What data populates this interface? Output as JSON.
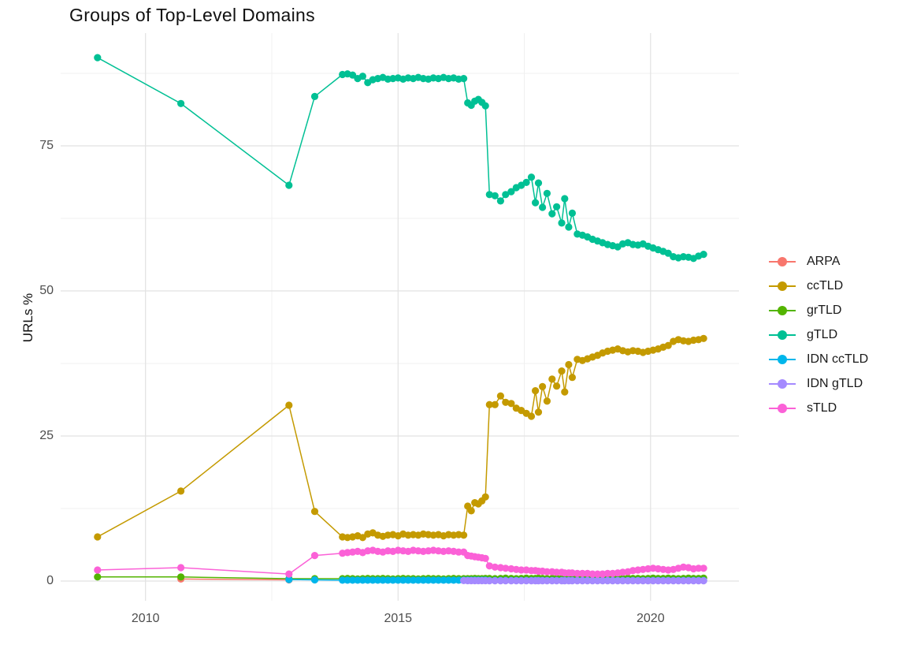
{
  "title": "Groups of Top-Level Domains",
  "y_axis": {
    "label": "URLs %",
    "ticks": [
      {
        "label": "0",
        "value": 0
      },
      {
        "label": "25",
        "value": 25
      },
      {
        "label": "50",
        "value": 50
      },
      {
        "label": "75",
        "value": 75
      }
    ]
  },
  "x_axis": {
    "ticks": [
      {
        "label": "2010",
        "value": 2010
      },
      {
        "label": "2015",
        "value": 2015
      },
      {
        "label": "2020",
        "value": 2020
      }
    ]
  },
  "colors": {
    "background": "#ffffff",
    "grid_major": "#e2e2e2",
    "grid_minor": "#f0f0f0",
    "tick_text": "#4d4d4d",
    "title_text": "#111111"
  },
  "chart_data": {
    "type": "line",
    "title": "Groups of Top-Level Domains",
    "xlabel": "",
    "ylabel": "URLs %",
    "legend_position": "right",
    "x_domain": [
      2008.32,
      2021.75
    ],
    "y_domain": [
      -3.4,
      94.43
    ],
    "grid": {
      "x_major": [
        2010,
        2015,
        2020
      ],
      "x_minor": [
        2012.5,
        2017.5
      ],
      "y_major": [
        0,
        25,
        50,
        75
      ],
      "y_minor": [
        12.5,
        37.5,
        62.5,
        87.5
      ]
    },
    "x": [
      2009.05,
      2010.7,
      2012.84,
      2013.35,
      2013.9,
      2014.0,
      2014.1,
      2014.2,
      2014.3,
      2014.4,
      2014.5,
      2014.6,
      2014.7,
      2014.8,
      2014.9,
      2015.0,
      2015.1,
      2015.2,
      2015.3,
      2015.4,
      2015.5,
      2015.6,
      2015.7,
      2015.8,
      2015.9,
      2016.0,
      2016.1,
      2016.2,
      2016.3,
      2016.38,
      2016.45,
      2016.52,
      2016.59,
      2016.66,
      2016.73,
      2016.81,
      2016.92,
      2017.03,
      2017.13,
      2017.24,
      2017.34,
      2017.44,
      2017.54,
      2017.64,
      2017.72,
      2017.78,
      2017.86,
      2017.95,
      2018.05,
      2018.14,
      2018.24,
      2018.3,
      2018.38,
      2018.45,
      2018.55,
      2018.65,
      2018.75,
      2018.85,
      2018.95,
      2019.05,
      2019.15,
      2019.25,
      2019.35,
      2019.45,
      2019.55,
      2019.65,
      2019.75,
      2019.85,
      2019.95,
      2020.05,
      2020.15,
      2020.25,
      2020.35,
      2020.45,
      2020.55,
      2020.65,
      2020.75,
      2020.85,
      2020.95,
      2021.05
    ],
    "series": [
      {
        "name": "ARPA",
        "color": "#F8766D",
        "values": [
          null,
          0.35,
          0.2,
          null,
          null,
          null,
          null,
          null,
          null,
          null,
          null,
          null,
          null,
          null,
          null,
          null,
          null,
          null,
          null,
          null,
          null,
          null,
          null,
          null,
          null,
          null,
          null,
          null,
          null,
          null,
          null,
          null,
          null,
          null,
          null,
          null,
          null,
          null,
          null,
          null,
          null,
          null,
          null,
          null,
          null,
          null,
          null,
          null,
          null,
          null,
          null,
          null,
          null,
          null,
          null,
          null,
          null,
          null,
          null,
          null,
          null,
          null,
          null,
          null,
          null,
          null,
          null,
          null,
          null,
          null,
          null,
          null,
          null,
          null,
          null,
          null,
          null,
          null,
          null,
          null
        ]
      },
      {
        "name": "ccTLD",
        "color": "#C49A00",
        "values": [
          7.6,
          15.5,
          30.3,
          12.0,
          7.6,
          7.5,
          7.6,
          7.8,
          7.5,
          8.1,
          8.3,
          7.9,
          7.7,
          7.9,
          8.0,
          7.8,
          8.1,
          7.9,
          8.0,
          7.9,
          8.1,
          8.0,
          7.9,
          8.0,
          7.8,
          8.0,
          7.9,
          8.0,
          7.9,
          12.9,
          12.1,
          13.5,
          13.3,
          13.8,
          14.5,
          30.4,
          30.4,
          31.9,
          30.8,
          30.6,
          29.8,
          29.4,
          28.9,
          28.4,
          32.8,
          29.1,
          33.5,
          31.0,
          34.8,
          33.6,
          36.2,
          32.6,
          37.3,
          35.1,
          38.2,
          38.0,
          38.3,
          38.6,
          38.9,
          39.3,
          39.6,
          39.8,
          40.0,
          39.7,
          39.5,
          39.7,
          39.6,
          39.4,
          39.6,
          39.8,
          40.0,
          40.3,
          40.6,
          41.3,
          41.6,
          41.4,
          41.3,
          41.5,
          41.6,
          41.8
        ]
      },
      {
        "name": "grTLD",
        "color": "#53B400",
        "values": [
          0.7,
          0.7,
          0.4,
          0.4,
          0.4,
          0.45,
          0.4,
          0.35,
          0.4,
          0.45,
          0.4,
          0.4,
          0.45,
          0.4,
          0.35,
          0.4,
          0.45,
          0.4,
          0.4,
          0.35,
          0.4,
          0.45,
          0.4,
          0.4,
          0.35,
          0.4,
          0.45,
          0.4,
          0.4,
          0.4,
          0.4,
          0.45,
          0.4,
          0.4,
          0.45,
          0.45,
          0.4,
          0.45,
          0.5,
          0.45,
          0.4,
          0.45,
          0.5,
          0.45,
          0.45,
          0.5,
          0.45,
          0.4,
          0.45,
          0.5,
          0.45,
          0.45,
          0.4,
          0.45,
          0.5,
          0.45,
          0.45,
          0.5,
          0.45,
          0.4,
          0.45,
          0.5,
          0.45,
          0.45,
          0.5,
          0.45,
          0.45,
          0.4,
          0.45,
          0.5,
          0.45,
          0.45,
          0.5,
          0.45,
          0.4,
          0.45,
          0.5,
          0.45,
          0.45,
          0.5
        ]
      },
      {
        "name": "gTLD",
        "color": "#00C094",
        "values": [
          90.2,
          82.3,
          68.2,
          83.5,
          87.3,
          87.4,
          87.2,
          86.6,
          87.0,
          85.9,
          86.4,
          86.6,
          86.8,
          86.5,
          86.6,
          86.7,
          86.5,
          86.7,
          86.6,
          86.8,
          86.6,
          86.5,
          86.7,
          86.6,
          86.8,
          86.6,
          86.7,
          86.5,
          86.6,
          82.4,
          82.0,
          82.7,
          83.0,
          82.5,
          81.9,
          66.6,
          66.4,
          65.5,
          66.6,
          67.1,
          67.8,
          68.2,
          68.7,
          69.6,
          65.2,
          68.6,
          64.4,
          66.8,
          63.3,
          64.5,
          61.7,
          65.9,
          61.0,
          63.4,
          59.8,
          59.6,
          59.3,
          58.9,
          58.6,
          58.3,
          58.0,
          57.8,
          57.6,
          58.1,
          58.3,
          58.0,
          57.9,
          58.1,
          57.7,
          57.4,
          57.1,
          56.8,
          56.5,
          55.9,
          55.7,
          55.9,
          55.8,
          55.6,
          56.0,
          56.3
        ]
      },
      {
        "name": "IDN ccTLD",
        "color": "#00B6EB",
        "values": [
          null,
          null,
          0.25,
          0.2,
          0.15,
          0.15,
          0.15,
          0.15,
          0.15,
          0.15,
          0.15,
          0.15,
          0.15,
          0.15,
          0.15,
          0.15,
          0.15,
          0.15,
          0.15,
          0.15,
          0.15,
          0.15,
          0.15,
          0.15,
          0.15,
          0.15,
          0.15,
          0.15,
          0.15,
          0.15,
          0.15,
          0.15,
          0.15,
          0.15,
          0.15,
          0.1,
          0.1,
          0.1,
          0.1,
          0.1,
          0.1,
          0.1,
          0.1,
          0.1,
          0.1,
          0.1,
          0.1,
          0.1,
          0.1,
          0.1,
          0.1,
          0.1,
          0.1,
          0.1,
          0.1,
          0.1,
          0.1,
          0.1,
          0.1,
          0.1,
          0.1,
          0.1,
          0.1,
          0.1,
          0.1,
          0.1,
          0.1,
          0.1,
          0.1,
          0.1,
          0.1,
          0.1,
          0.1,
          0.1,
          0.1,
          0.1,
          0.1,
          0.1,
          0.1,
          0.1
        ]
      },
      {
        "name": "IDN gTLD",
        "color": "#A58AFF",
        "values": [
          null,
          null,
          null,
          null,
          null,
          null,
          null,
          null,
          null,
          null,
          null,
          null,
          null,
          null,
          null,
          null,
          null,
          null,
          null,
          null,
          null,
          null,
          null,
          null,
          null,
          null,
          null,
          null,
          0.08,
          0.07,
          0.07,
          0.07,
          0.07,
          0.07,
          0.07,
          0.05,
          0.05,
          0.05,
          0.05,
          0.05,
          0.05,
          0.05,
          0.05,
          0.05,
          0.05,
          0.05,
          0.05,
          0.05,
          0.05,
          0.05,
          0.05,
          0.05,
          0.05,
          0.05,
          0.05,
          0.05,
          0.05,
          0.05,
          0.05,
          0.05,
          0.05,
          0.05,
          0.05,
          0.05,
          0.05,
          0.05,
          0.05,
          0.05,
          0.05,
          0.05,
          0.05,
          0.05,
          0.05,
          0.05,
          0.05,
          0.05,
          0.05,
          0.05,
          0.05,
          0.05
        ]
      },
      {
        "name": "sTLD",
        "color": "#FB61D7",
        "values": [
          1.9,
          2.3,
          1.2,
          4.4,
          4.8,
          4.9,
          5.0,
          5.1,
          4.9,
          5.2,
          5.3,
          5.1,
          5.0,
          5.2,
          5.1,
          5.3,
          5.2,
          5.1,
          5.3,
          5.2,
          5.1,
          5.2,
          5.3,
          5.2,
          5.1,
          5.2,
          5.1,
          5.0,
          5.0,
          4.4,
          4.3,
          4.2,
          4.1,
          4.0,
          3.9,
          2.6,
          2.4,
          2.3,
          2.2,
          2.1,
          2.0,
          1.9,
          1.9,
          1.8,
          1.8,
          1.7,
          1.7,
          1.6,
          1.6,
          1.5,
          1.5,
          1.4,
          1.4,
          1.4,
          1.3,
          1.3,
          1.3,
          1.2,
          1.2,
          1.2,
          1.3,
          1.3,
          1.4,
          1.5,
          1.6,
          1.8,
          1.9,
          2.0,
          2.1,
          2.2,
          2.1,
          2.0,
          1.9,
          2.0,
          2.2,
          2.4,
          2.3,
          2.1,
          2.2,
          2.2
        ]
      }
    ]
  }
}
